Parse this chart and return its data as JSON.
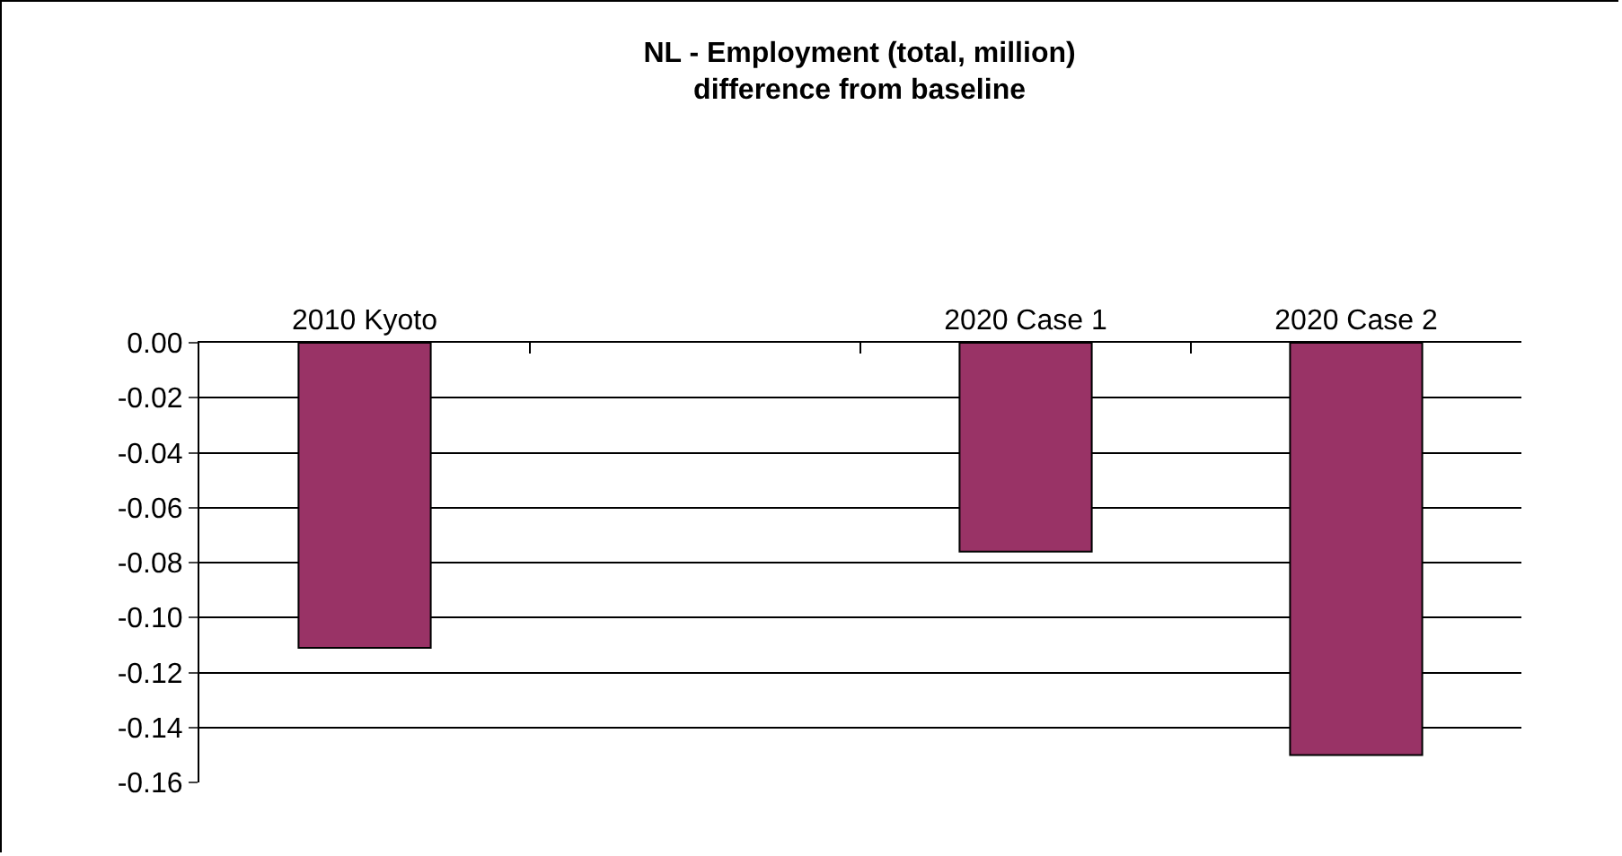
{
  "chart_data": {
    "type": "bar",
    "title": "NL - Employment (total, million)\ndifference from baseline",
    "categories": [
      "2010 Kyoto",
      null,
      "2020 Case 1",
      "2020 Case 2"
    ],
    "values": [
      -0.111,
      null,
      -0.076,
      -0.15
    ],
    "color": "#993366",
    "ylim": [
      -0.16,
      0
    ],
    "yticks": [
      {
        "value": 0,
        "label": "0.00"
      },
      {
        "value": -0.02,
        "label": "-0.02"
      },
      {
        "value": -0.04,
        "label": "-0.04"
      },
      {
        "value": -0.06,
        "label": "-0.06"
      },
      {
        "value": -0.08,
        "label": "-0.08"
      },
      {
        "value": -0.1,
        "label": "-0.10"
      },
      {
        "value": -0.12,
        "label": "-0.12"
      },
      {
        "value": -0.14,
        "label": "-0.14"
      },
      {
        "value": -0.16,
        "label": "-0.16"
      }
    ],
    "grid": "y",
    "legend": false
  }
}
